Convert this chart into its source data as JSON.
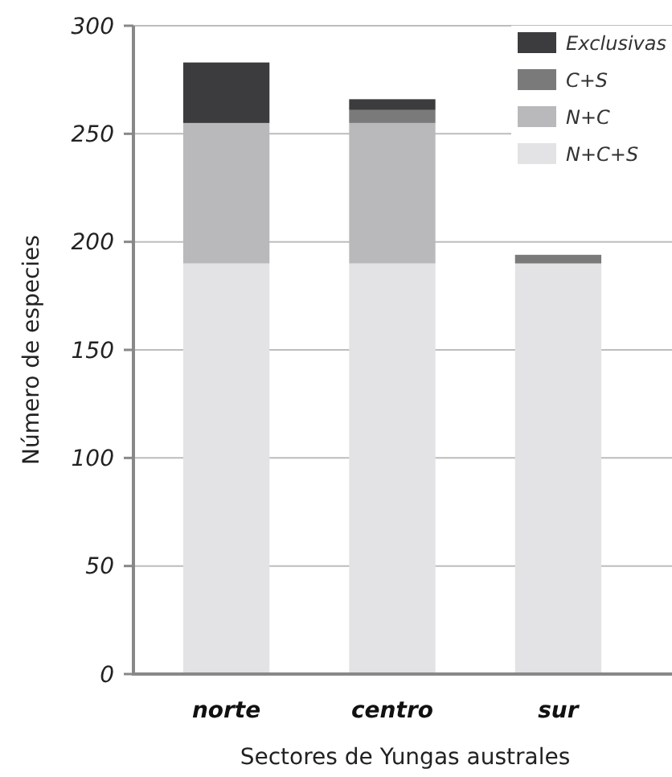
{
  "chart_data": {
    "type": "bar",
    "stacked": true,
    "xlabel": "Sectores de Yungas australes",
    "ylabel": "Número de especies",
    "categories": [
      "norte",
      "centro",
      "sur"
    ],
    "series": [
      {
        "name": "N+C+S",
        "color": "#e3e3e5",
        "values": [
          190,
          190,
          190
        ]
      },
      {
        "name": "N+C",
        "color": "#b9b9bb",
        "values": [
          65,
          65,
          0
        ]
      },
      {
        "name": "C+S",
        "color": "#7a7a7a",
        "values": [
          0,
          6,
          4
        ]
      },
      {
        "name": "Exclusivas",
        "color": "#3c3c3e",
        "values": [
          28,
          5,
          0
        ]
      }
    ],
    "ylim": [
      0,
      300
    ],
    "yticks": [
      0,
      50,
      100,
      150,
      200,
      250,
      300
    ],
    "grid": "y",
    "legend": "top right"
  }
}
